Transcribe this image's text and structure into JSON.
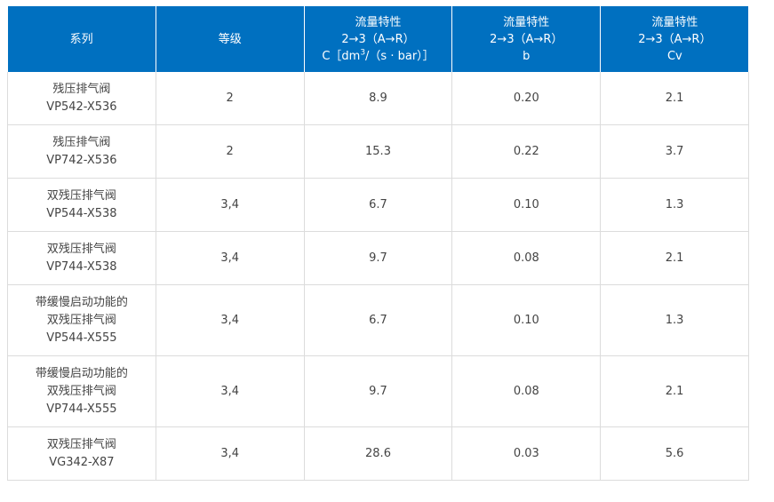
{
  "table": {
    "headers": {
      "series": "系列",
      "grade": "等级",
      "flow_c": {
        "line1": "流量特性",
        "line2": "2→3（A→R）",
        "line3_pre": "C［dm",
        "line3_sup": "3",
        "line3_post": "/（s · bar）］"
      },
      "flow_b": {
        "line1": "流量特性",
        "line2": "2→3（A→R）",
        "line3": "b"
      },
      "flow_cv": {
        "line1": "流量特性",
        "line2": "2→3（A→R）",
        "line3": "Cv"
      }
    },
    "rows": [
      {
        "series": [
          "残压排气阀",
          "VP542-X536"
        ],
        "grade": "2",
        "c": "8.9",
        "b": "0.20",
        "cv": "2.1"
      },
      {
        "series": [
          "残压排气阀",
          "VP742-X536"
        ],
        "grade": "2",
        "c": "15.3",
        "b": "0.22",
        "cv": "3.7"
      },
      {
        "series": [
          "双残压排气阀",
          "VP544-X538"
        ],
        "grade": "3,4",
        "c": "6.7",
        "b": "0.10",
        "cv": "1.3"
      },
      {
        "series": [
          "双残压排气阀",
          "VP744-X538"
        ],
        "grade": "3,4",
        "c": "9.7",
        "b": "0.08",
        "cv": "2.1"
      },
      {
        "series": [
          "带缓慢启动功能的",
          "双残压排气阀",
          "VP544-X555"
        ],
        "grade": "3,4",
        "c": "6.7",
        "b": "0.10",
        "cv": "1.3"
      },
      {
        "series": [
          "带缓慢启动功能的",
          "双残压排气阀",
          "VP744-X555"
        ],
        "grade": "3,4",
        "c": "9.7",
        "b": "0.08",
        "cv": "2.1"
      },
      {
        "series": [
          "双残压排气阀",
          "VG342-X87"
        ],
        "grade": "3,4",
        "c": "28.6",
        "b": "0.03",
        "cv": "5.6"
      }
    ]
  }
}
